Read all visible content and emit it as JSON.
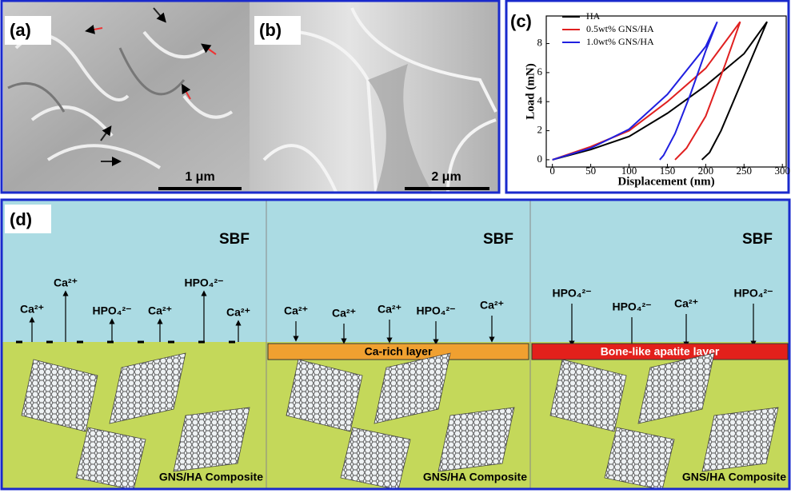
{
  "panels": {
    "a": {
      "label": "(a)",
      "scale_bar": "1 μm"
    },
    "b": {
      "label": "(b)",
      "scale_bar": "2 μm"
    },
    "c": {
      "label": "(c)"
    },
    "d": {
      "label": "(d)",
      "subpanels": [
        {
          "medium": "SBF",
          "ions": [
            "Ca²⁺",
            "Ca²⁺",
            "HPO₄²⁻",
            "Ca²⁺",
            "HPO₄²⁻",
            "Ca²⁺"
          ],
          "composite": "GNS/HA Composite"
        },
        {
          "medium": "SBF",
          "ions": [
            "Ca²⁺",
            "Ca²⁺",
            "Ca²⁺",
            "HPO₄²⁻",
            "Ca²⁺"
          ],
          "layer": "Ca-rich layer",
          "composite": "GNS/HA Composite"
        },
        {
          "medium": "SBF",
          "ions": [
            "HPO₄²⁻",
            "HPO₄²⁻",
            "Ca²⁺",
            "HPO₄²⁻"
          ],
          "layer": "Bone-like apatite layer",
          "composite": "GNS/HA Composite"
        }
      ]
    }
  },
  "chart_data": {
    "type": "line",
    "x_label": "Displacement (nm)",
    "y_label": "Load (mN)",
    "xlim": [
      -8,
      305
    ],
    "ylim": [
      -0.5,
      9.9
    ],
    "xticks": [
      0,
      50,
      100,
      150,
      200,
      250,
      300
    ],
    "yticks": [
      0,
      2,
      4,
      6,
      8
    ],
    "legend": "upper left",
    "series": [
      {
        "name": "HA",
        "color": "#000000",
        "x": [
          0,
          50,
          100,
          150,
          200,
          250,
          280,
          260,
          240,
          220,
          205,
          195
        ],
        "values": [
          0,
          0.7,
          1.6,
          3.2,
          5.1,
          7.3,
          9.5,
          7,
          4.5,
          2,
          0.5,
          0
        ]
      },
      {
        "name": "0.5wt% GNS/HA",
        "color": "#e02020",
        "x": [
          0,
          50,
          100,
          150,
          200,
          245,
          225,
          200,
          175,
          160
        ],
        "values": [
          0,
          0.9,
          2,
          4,
          6.3,
          9.5,
          6.5,
          3,
          0.8,
          0
        ]
      },
      {
        "name": "1.0wt% GNS/HA",
        "color": "#2020e0",
        "x": [
          0,
          50,
          100,
          150,
          200,
          215,
          200,
          180,
          160,
          145,
          140
        ],
        "values": [
          0,
          0.8,
          2.1,
          4.5,
          7.8,
          9.5,
          7.5,
          4.5,
          1.8,
          0.3,
          0
        ]
      }
    ]
  }
}
